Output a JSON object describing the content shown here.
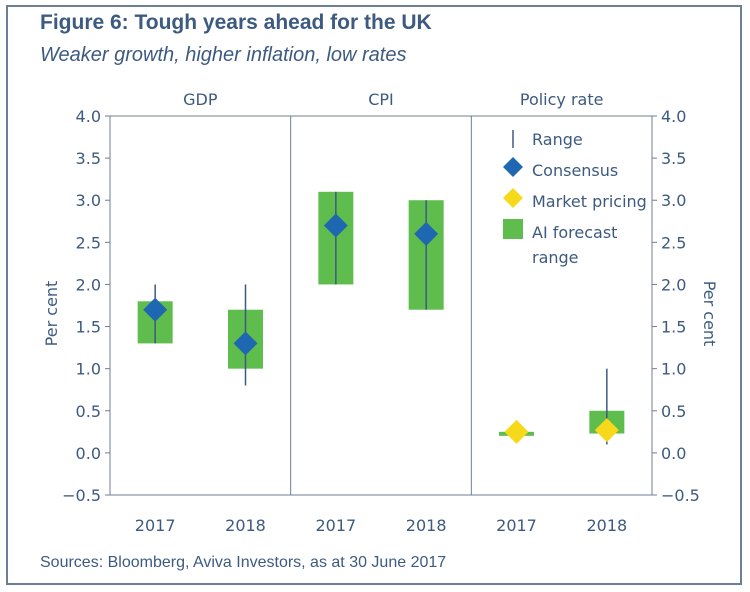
{
  "figure": {
    "title": "Figure 6: Tough years ahead for the UK",
    "subtitle": "Weaker growth, higher inflation, low rates",
    "source": "Sources: Bloomberg, Aviva Investors, as at 30 June 2017"
  },
  "colors": {
    "text": "#3d5a80",
    "border": "#6d7f95",
    "forecast_range": "#5fbd4e",
    "consensus": "#1f67b1",
    "market_pricing": "#f7d91c",
    "range_line": "#3d5a80"
  },
  "chart_data": {
    "type": "range",
    "panels": [
      "GDP",
      "CPI",
      "Policy rate"
    ],
    "categories": [
      "2017",
      "2018"
    ],
    "ylabel_left": "Per cent",
    "ylabel_right": "Per cent",
    "ylim": [
      -0.5,
      4.0
    ],
    "yticks": [
      "4.0",
      "3.5",
      "3.0",
      "2.5",
      "2.0",
      "1.5",
      "1.0",
      "0.5",
      "0.0",
      "−0.5"
    ],
    "grid": false,
    "legend_position": "top-right",
    "legend": [
      {
        "key": "range",
        "label": "Range",
        "marker": "line"
      },
      {
        "key": "consensus",
        "label": "Consensus",
        "marker": "diamond"
      },
      {
        "key": "market",
        "label": "Market pricing",
        "marker": "diamond"
      },
      {
        "key": "ai",
        "label": "AI forecast",
        "label2": "range",
        "marker": "box"
      }
    ],
    "items": [
      {
        "panel": "GDP",
        "category": "2017",
        "range": [
          1.3,
          2.0
        ],
        "ai_forecast_range": [
          1.3,
          1.8
        ],
        "consensus": 1.7
      },
      {
        "panel": "GDP",
        "category": "2018",
        "range": [
          0.8,
          2.0
        ],
        "ai_forecast_range": [
          1.0,
          1.7
        ],
        "consensus": 1.3
      },
      {
        "panel": "CPI",
        "category": "2017",
        "range": [
          2.0,
          3.1
        ],
        "ai_forecast_range": [
          2.0,
          3.1
        ],
        "consensus": 2.7
      },
      {
        "panel": "CPI",
        "category": "2018",
        "range": [
          1.7,
          3.0
        ],
        "ai_forecast_range": [
          1.7,
          3.0
        ],
        "consensus": 2.6
      },
      {
        "panel": "Policy rate",
        "category": "2017",
        "range": [
          0.15,
          0.25
        ],
        "ai_forecast_range": [
          0.21,
          0.25
        ],
        "market_pricing": 0.25
      },
      {
        "panel": "Policy rate",
        "category": "2018",
        "range": [
          0.1,
          1.0
        ],
        "ai_forecast_range": [
          0.23,
          0.5
        ],
        "market_pricing": 0.27
      }
    ]
  }
}
